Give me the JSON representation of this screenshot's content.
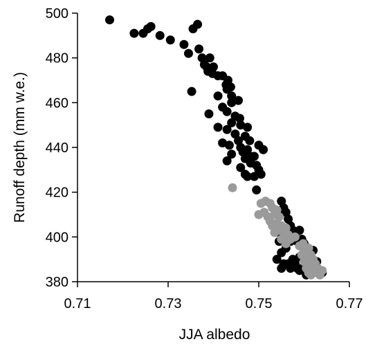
{
  "chart_data": {
    "type": "scatter",
    "title": "",
    "xlabel": "JJA albedo",
    "ylabel": "Runoff depth (mm w.e.)",
    "xlim": [
      0.71,
      0.77
    ],
    "ylim": [
      380,
      500
    ],
    "xticks": [
      "0.71",
      "0.73",
      "0.75",
      "0.77"
    ],
    "yticks": [
      "380",
      "400",
      "420",
      "440",
      "460",
      "480",
      "500"
    ],
    "grid": false,
    "legend": "none",
    "colors": {
      "black_series": "#000000",
      "gray_series": "#9a9a9a"
    },
    "series": [
      {
        "color": "black",
        "points": [
          [
            0.7171,
            497
          ],
          [
            0.7225,
            491
          ],
          [
            0.7245,
            491
          ],
          [
            0.7255,
            493
          ],
          [
            0.7262,
            494
          ],
          [
            0.7282,
            490
          ],
          [
            0.7305,
            488
          ],
          [
            0.7335,
            486
          ],
          [
            0.7345,
            482
          ],
          [
            0.7355,
            493
          ],
          [
            0.7365,
            495
          ],
          [
            0.7368,
            484
          ],
          [
            0.7375,
            480
          ],
          [
            0.738,
            477
          ],
          [
            0.7385,
            476
          ],
          [
            0.7392,
            480
          ],
          [
            0.7388,
            474
          ],
          [
            0.7398,
            473
          ],
          [
            0.74,
            476
          ],
          [
            0.741,
            472
          ],
          [
            0.742,
            472
          ],
          [
            0.7428,
            468
          ],
          [
            0.7432,
            470
          ],
          [
            0.743,
            466
          ],
          [
            0.7438,
            467
          ],
          [
            0.744,
            463
          ],
          [
            0.7352,
            465
          ],
          [
            0.741,
            463
          ],
          [
            0.744,
            460
          ],
          [
            0.742,
            458
          ],
          [
            0.739,
            455
          ],
          [
            0.7455,
            461
          ],
          [
            0.743,
            456
          ],
          [
            0.7448,
            454
          ],
          [
            0.7458,
            453
          ],
          [
            0.744,
            451
          ],
          [
            0.746,
            450
          ],
          [
            0.743,
            448
          ],
          [
            0.741,
            449
          ],
          [
            0.7475,
            449
          ],
          [
            0.7448,
            446
          ],
          [
            0.747,
            445
          ],
          [
            0.7455,
            443
          ],
          [
            0.7435,
            441
          ],
          [
            0.748,
            443
          ],
          [
            0.746,
            440
          ],
          [
            0.7475,
            439
          ],
          [
            0.75,
            441
          ],
          [
            0.7482,
            436
          ],
          [
            0.7465,
            438
          ],
          [
            0.747,
            435
          ],
          [
            0.742,
            442
          ],
          [
            0.744,
            437
          ],
          [
            0.749,
            436
          ],
          [
            0.751,
            439
          ],
          [
            0.743,
            434
          ],
          [
            0.7495,
            432
          ],
          [
            0.75,
            430
          ],
          [
            0.747,
            428
          ],
          [
            0.746,
            431
          ],
          [
            0.7505,
            428
          ],
          [
            0.749,
            427
          ],
          [
            0.7482,
            433
          ],
          [
            0.7475,
            427
          ],
          [
            0.7495,
            421
          ],
          [
            0.755,
            416
          ],
          [
            0.7555,
            413
          ],
          [
            0.7545,
            410
          ],
          [
            0.756,
            411
          ],
          [
            0.7565,
            408
          ],
          [
            0.757,
            405
          ],
          [
            0.7575,
            403
          ],
          [
            0.758,
            401
          ],
          [
            0.759,
            403
          ],
          [
            0.7595,
            399
          ],
          [
            0.7585,
            398
          ],
          [
            0.76,
            397
          ],
          [
            0.7605,
            395
          ],
          [
            0.761,
            393
          ],
          [
            0.762,
            394
          ],
          [
            0.7615,
            391
          ],
          [
            0.7625,
            389
          ],
          [
            0.7545,
            398
          ],
          [
            0.755,
            393
          ],
          [
            0.756,
            395
          ],
          [
            0.754,
            390
          ],
          [
            0.7555,
            388
          ],
          [
            0.755,
            386
          ],
          [
            0.7565,
            388
          ],
          [
            0.757,
            386
          ],
          [
            0.7575,
            390
          ],
          [
            0.758,
            388
          ],
          [
            0.7585,
            386
          ],
          [
            0.759,
            385
          ],
          [
            0.76,
            387
          ],
          [
            0.761,
            385
          ],
          [
            0.762,
            386
          ],
          [
            0.7605,
            383
          ],
          [
            0.763,
            384
          ],
          [
            0.7635,
            385
          ],
          [
            0.764,
            384
          ],
          [
            0.7628,
            389
          ],
          [
            0.759,
            391
          ],
          [
            0.756,
            400
          ],
          [
            0.757,
            398
          ],
          [
            0.7545,
            402
          ],
          [
            0.7535,
            405
          ]
        ]
      },
      {
        "color": "gray",
        "points": [
          [
            0.7442,
            422
          ],
          [
            0.7505,
            415
          ],
          [
            0.7515,
            416
          ],
          [
            0.7525,
            415
          ],
          [
            0.7512,
            411
          ],
          [
            0.753,
            413
          ],
          [
            0.754,
            412
          ],
          [
            0.75,
            410
          ],
          [
            0.752,
            409
          ],
          [
            0.7535,
            410
          ],
          [
            0.7545,
            409
          ],
          [
            0.7525,
            407
          ],
          [
            0.753,
            405
          ],
          [
            0.754,
            406
          ],
          [
            0.755,
            405
          ],
          [
            0.7545,
            403
          ],
          [
            0.7535,
            402
          ],
          [
            0.7555,
            402
          ],
          [
            0.756,
            404
          ],
          [
            0.7565,
            401
          ],
          [
            0.755,
            399
          ],
          [
            0.757,
            399
          ],
          [
            0.758,
            400
          ],
          [
            0.756,
            397
          ],
          [
            0.759,
            396
          ],
          [
            0.7598,
            397
          ],
          [
            0.76,
            394
          ],
          [
            0.761,
            395
          ],
          [
            0.7595,
            392
          ],
          [
            0.7605,
            391
          ],
          [
            0.7615,
            392
          ],
          [
            0.76,
            389
          ],
          [
            0.7612,
            389
          ],
          [
            0.762,
            390
          ],
          [
            0.7607,
            387
          ],
          [
            0.7617,
            386
          ],
          [
            0.7625,
            388
          ],
          [
            0.763,
            386
          ],
          [
            0.762,
            385
          ],
          [
            0.7628,
            384
          ],
          [
            0.7635,
            383
          ],
          [
            0.761,
            384
          ],
          [
            0.764,
            385
          ],
          [
            0.7605,
            386
          ],
          [
            0.7615,
            383
          ]
        ]
      }
    ]
  }
}
